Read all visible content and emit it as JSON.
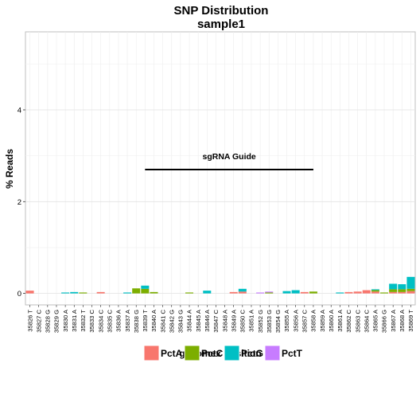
{
  "chart_data": {
    "type": "bar",
    "stacked": true,
    "title": "SNP Distribution",
    "subtitle": "sample1",
    "xlabel": "genomex Position",
    "ylabel": "% Reads",
    "ylim": [
      -0.25,
      5.7
    ],
    "yticks": [
      0,
      2,
      4
    ],
    "grid": true,
    "legend_position": "bottom",
    "categories": [
      "35826 T",
      "35827 C",
      "35828 G",
      "35829 G",
      "35830 A",
      "35831 A",
      "35832 T",
      "35833 C",
      "35834 C",
      "35835 C",
      "35836 A",
      "35837 A",
      "35838 G",
      "35839 T",
      "35840 A",
      "35841 C",
      "35842 G",
      "35843 G",
      "35844 A",
      "35845 A",
      "35846 A",
      "35847 C",
      "35848 A",
      "35849 A",
      "35850 C",
      "35851 A",
      "35852 G",
      "35853 G",
      "35854 G",
      "35855 A",
      "35856 A",
      "35857 C",
      "35858 A",
      "35859 A",
      "35860 A",
      "35861 A",
      "35862 C",
      "35863 C",
      "35864 C",
      "35865 A",
      "35866 G",
      "35867 A",
      "35868 A",
      "35869 T"
    ],
    "series": [
      {
        "name": "PctA",
        "color": "#F8766D",
        "values": [
          0.06,
          0,
          0,
          0,
          0,
          0,
          0,
          0,
          0.03,
          0,
          0,
          0,
          0,
          0,
          0,
          0,
          0,
          0,
          0,
          0,
          0,
          0,
          0,
          0.03,
          0.04,
          0,
          0,
          0,
          0,
          0,
          0,
          0.03,
          0,
          0,
          0,
          0,
          0.03,
          0.04,
          0.07,
          0.04,
          0,
          0.03,
          0.03,
          0.05
        ]
      },
      {
        "name": "PctC",
        "color": "#7CAE00",
        "values": [
          0,
          0,
          0,
          0,
          0,
          0,
          0.02,
          0,
          0,
          0,
          0,
          0,
          0.11,
          0.1,
          0.03,
          0,
          0,
          0,
          0.02,
          0,
          0,
          0,
          0,
          0,
          0,
          0,
          0,
          0.02,
          0,
          0,
          0,
          0,
          0.04,
          0,
          0,
          0,
          0,
          0,
          0,
          0.03,
          0.02,
          0.06,
          0.06,
          0.05
        ]
      },
      {
        "name": "PctG",
        "color": "#00BFC4",
        "values": [
          0,
          0,
          0,
          0,
          0.02,
          0.03,
          0,
          0,
          0,
          0,
          0,
          0.02,
          0,
          0.07,
          0,
          0,
          0,
          0,
          0,
          0,
          0.06,
          0,
          0,
          0,
          0.06,
          0,
          0,
          0,
          0,
          0.05,
          0.07,
          0,
          0,
          0,
          0,
          0.02,
          0,
          0,
          0,
          0.02,
          0,
          0.12,
          0.11,
          0.26
        ]
      },
      {
        "name": "PctT",
        "color": "#C77CFF",
        "values": [
          0,
          0,
          0,
          0,
          0,
          0,
          0,
          0,
          0,
          0,
          0,
          0,
          0,
          0,
          0,
          0,
          0,
          0,
          0,
          0,
          0,
          0,
          0,
          0,
          0,
          0,
          0.02,
          0.02,
          0,
          0,
          0,
          0,
          0,
          0,
          0,
          0,
          0,
          0,
          0,
          0,
          0,
          0,
          0,
          0
        ]
      }
    ],
    "annotation": {
      "text": "sgRNA Guide",
      "x_start": "35839 T",
      "x_end": "35858 A",
      "y": 2.7
    }
  }
}
